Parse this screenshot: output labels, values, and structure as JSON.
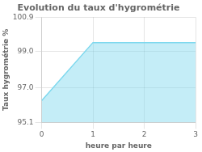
{
  "chart_data": {
    "type": "area",
    "title": "Evolution du taux d'hygrométrie",
    "x_label": "heure par heure",
    "y_label": "Taux hygrométrie %",
    "x": [
      0,
      1,
      3
    ],
    "values": [
      96.3,
      99.5,
      99.5
    ],
    "color": "#7dd8ee",
    "xlim": [
      0,
      3
    ],
    "ylim": [
      95.1,
      100.9
    ],
    "xticks": [
      0,
      1,
      2,
      3
    ],
    "yticks": [
      95.1,
      {
        "value": 97,
        "label": "97.0"
      },
      {
        "value": 99,
        "label": "99.0"
      },
      100.9
    ],
    "grid": true
  }
}
